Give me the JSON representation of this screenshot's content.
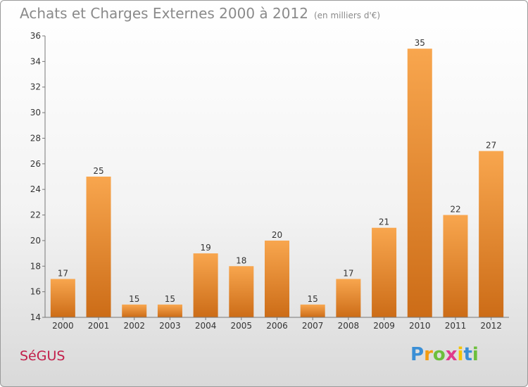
{
  "title": "Achats et Charges Externes 2000 à 2012",
  "unit": "(en milliers d'€)",
  "commune": "SéGUS",
  "logo": {
    "letters": [
      "P",
      "r",
      "o",
      "x",
      "i",
      "t",
      "i"
    ],
    "colors": [
      "#3a8fd6",
      "#f39c12",
      "#6cbf3c",
      "#e03b8b",
      "#f5c400",
      "#3a8fd6",
      "#6cbf3c"
    ]
  },
  "colors": {
    "bar_light": "#f8a64e",
    "bar_dark": "#cc6c17",
    "commune": "#c21e4a"
  },
  "chart_data": {
    "type": "bar",
    "title": "Achats et Charges Externes 2000 à 2012",
    "xlabel": "",
    "ylabel": "",
    "categories": [
      "2000",
      "2001",
      "2002",
      "2003",
      "2004",
      "2005",
      "2006",
      "2007",
      "2008",
      "2009",
      "2010",
      "2011",
      "2012"
    ],
    "values": [
      17,
      25,
      15,
      15,
      19,
      18,
      20,
      15,
      17,
      21,
      35,
      22,
      27
    ],
    "ylim": [
      14,
      36
    ],
    "yticks": [
      14,
      16,
      18,
      20,
      22,
      24,
      26,
      28,
      30,
      32,
      34,
      36
    ],
    "grid": false,
    "legend": "none"
  }
}
